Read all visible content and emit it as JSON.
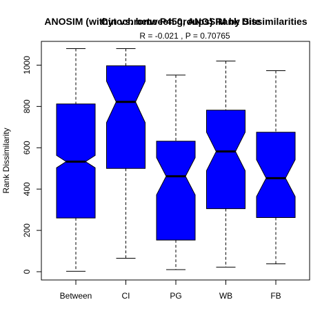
{
  "chart_data": {
    "type": "boxplot",
    "title": "ANOSIM (within vs. between groups) Rank Dissimilarities",
    "title_overlay": "Cytochrome P450, ANOSIM by Site",
    "subtitle": "R =  -0.021 ,  P =  0.70765",
    "xlabel": "",
    "ylabel": "Rank Dissimilarity",
    "ylim": [
      -40,
      1115
    ],
    "yticks": [
      0,
      200,
      400,
      600,
      800,
      1000
    ],
    "box_color": "#0000ff",
    "notched": true,
    "categories": [
      "Between",
      "CI",
      "PG",
      "WB",
      "FB"
    ],
    "boxes": [
      {
        "label": "Between",
        "min": 2,
        "q1": 260,
        "median": 533,
        "q3": 812,
        "max": 1080,
        "notch_low": 503,
        "notch_high": 563
      },
      {
        "label": "CI",
        "min": 65,
        "q1": 500,
        "median": 822,
        "q3": 997,
        "max": 1080,
        "notch_low": 722,
        "notch_high": 922
      },
      {
        "label": "PG",
        "min": 10,
        "q1": 153,
        "median": 462,
        "q3": 632,
        "max": 952,
        "notch_low": 372,
        "notch_high": 552
      },
      {
        "label": "WB",
        "min": 22,
        "q1": 305,
        "median": 582,
        "q3": 782,
        "max": 1020,
        "notch_low": 489,
        "notch_high": 675
      },
      {
        "label": "FB",
        "min": 38,
        "q1": 262,
        "median": 453,
        "q3": 675,
        "max": 973,
        "notch_low": 364,
        "notch_high": 542
      }
    ]
  }
}
